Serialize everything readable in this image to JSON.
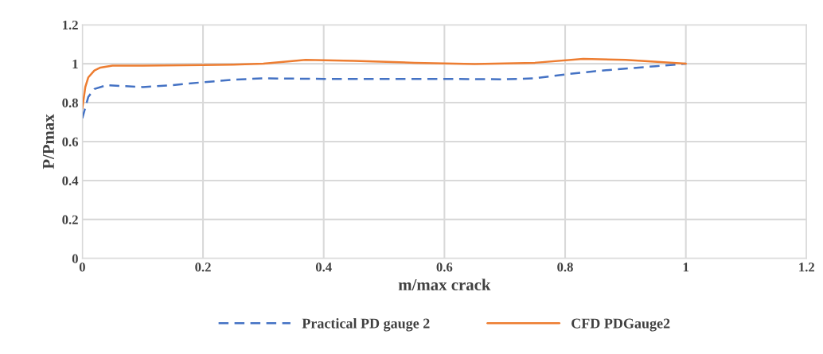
{
  "chart_data": {
    "type": "line",
    "xlabel": "m/max crack",
    "ylabel": "P/Pmax",
    "xlim": [
      0,
      1.2
    ],
    "xticks": [
      {
        "value": 0,
        "label": "0"
      },
      0.2,
      0.4,
      0.6,
      0.8,
      {
        "value": 1,
        "label": "1"
      },
      1.2
    ],
    "ylim": [
      0,
      1.2
    ],
    "yticks": [
      {
        "value": 0,
        "label": "0"
      },
      0.2,
      0.4,
      0.6,
      0.8,
      {
        "value": 1,
        "label": "1"
      },
      1.2
    ],
    "grid": true,
    "legend": "bottom",
    "series": [
      {
        "name": "Practical PD gauge 2",
        "color": "#4472c4",
        "line_style": "dashed",
        "x": [
          0,
          0.01,
          0.02,
          0.04,
          0.07,
          0.1,
          0.15,
          0.2,
          0.25,
          0.3,
          0.4,
          0.5,
          0.6,
          0.7,
          0.75,
          0.8,
          0.85,
          0.9,
          0.95,
          1.0
        ],
        "values": [
          0.72,
          0.83,
          0.87,
          0.89,
          0.885,
          0.88,
          0.89,
          0.905,
          0.918,
          0.925,
          0.922,
          0.922,
          0.922,
          0.92,
          0.925,
          0.945,
          0.962,
          0.975,
          0.987,
          1.0
        ]
      },
      {
        "name": "CFD PDGauge2",
        "color": "#ed7d31",
        "line_style": "solid",
        "x": [
          0,
          0.005,
          0.01,
          0.02,
          0.03,
          0.05,
          0.1,
          0.2,
          0.25,
          0.3,
          0.37,
          0.45,
          0.55,
          0.65,
          0.75,
          0.83,
          0.9,
          1.0
        ],
        "values": [
          0.77,
          0.88,
          0.93,
          0.965,
          0.98,
          0.99,
          0.99,
          0.993,
          0.995,
          1.0,
          1.02,
          1.015,
          1.005,
          0.998,
          1.005,
          1.025,
          1.02,
          1.0
        ]
      }
    ]
  }
}
